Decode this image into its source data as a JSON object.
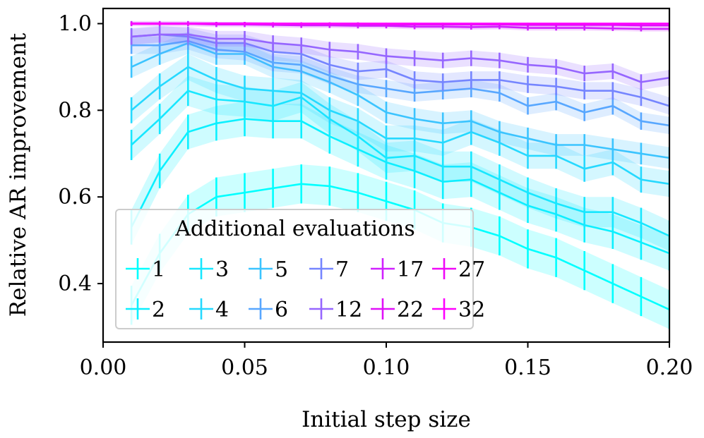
{
  "chart_data": {
    "type": "line",
    "title": "",
    "xlabel": "Initial step size",
    "ylabel": "Relative AR improvement",
    "xlim": [
      0.0,
      0.2
    ],
    "ylim": [
      0.265,
      1.035
    ],
    "xticks": [
      0.0,
      0.05,
      0.1,
      0.15,
      0.2
    ],
    "xtick_labels": [
      "0.00",
      "0.05",
      "0.10",
      "0.15",
      "0.20"
    ],
    "yticks": [
      0.4,
      0.6,
      0.8,
      1.0
    ],
    "ytick_labels": [
      "0.4",
      "0.6",
      "0.8",
      "1.0"
    ],
    "grid": false,
    "error_bars": true,
    "shaded_band": true,
    "legend": {
      "title": "Additional evaluations",
      "location": "lower-left",
      "columns": 6
    },
    "x": [
      0.01,
      0.02,
      0.03,
      0.04,
      0.05,
      0.06,
      0.07,
      0.08,
      0.09,
      0.1,
      0.11,
      0.12,
      0.13,
      0.14,
      0.15,
      0.16,
      0.17,
      0.18,
      0.19,
      0.2
    ],
    "series": [
      {
        "name": "1",
        "color": "#00ffff",
        "err": 0.045,
        "values": [
          0.35,
          0.47,
          0.56,
          0.6,
          0.61,
          0.62,
          0.63,
          0.625,
          0.61,
          0.59,
          0.57,
          0.54,
          0.53,
          0.51,
          0.48,
          0.46,
          0.43,
          0.4,
          0.37,
          0.34
        ]
      },
      {
        "name": "2",
        "color": "#0cf0ff",
        "err": 0.04,
        "values": [
          0.53,
          0.66,
          0.75,
          0.77,
          0.78,
          0.775,
          0.775,
          0.74,
          0.71,
          0.68,
          0.66,
          0.635,
          0.64,
          0.61,
          0.58,
          0.56,
          0.535,
          0.52,
          0.495,
          0.47
        ]
      },
      {
        "name": "3",
        "color": "#18e7ff",
        "err": 0.035,
        "values": [
          0.72,
          0.78,
          0.845,
          0.825,
          0.82,
          0.81,
          0.83,
          0.78,
          0.74,
          0.69,
          0.695,
          0.67,
          0.67,
          0.64,
          0.61,
          0.585,
          0.565,
          0.565,
          0.54,
          0.51
        ]
      },
      {
        "name": "4",
        "color": "#26d9ff",
        "err": 0.03,
        "values": [
          0.8,
          0.855,
          0.9,
          0.87,
          0.85,
          0.845,
          0.84,
          0.8,
          0.775,
          0.735,
          0.735,
          0.725,
          0.75,
          0.725,
          0.695,
          0.695,
          0.665,
          0.68,
          0.64,
          0.63
        ]
      },
      {
        "name": "5",
        "color": "#3bc4ff",
        "err": 0.025,
        "values": [
          0.9,
          0.93,
          0.955,
          0.93,
          0.93,
          0.9,
          0.89,
          0.865,
          0.835,
          0.795,
          0.78,
          0.77,
          0.775,
          0.75,
          0.735,
          0.72,
          0.72,
          0.71,
          0.7,
          0.69
        ]
      },
      {
        "name": "6",
        "color": "#58a7ff",
        "err": 0.02,
        "values": [
          0.95,
          0.95,
          0.96,
          0.94,
          0.935,
          0.91,
          0.905,
          0.88,
          0.86,
          0.85,
          0.84,
          0.845,
          0.85,
          0.84,
          0.81,
          0.82,
          0.795,
          0.81,
          0.775,
          0.765
        ]
      },
      {
        "name": "7",
        "color": "#7585ff",
        "err": 0.02,
        "values": [
          0.97,
          0.975,
          0.97,
          0.955,
          0.955,
          0.935,
          0.93,
          0.905,
          0.89,
          0.895,
          0.87,
          0.865,
          0.87,
          0.87,
          0.86,
          0.855,
          0.845,
          0.845,
          0.83,
          0.81
        ]
      },
      {
        "name": "12",
        "color": "#9666ff",
        "err": 0.018,
        "values": [
          0.97,
          0.975,
          0.975,
          0.965,
          0.965,
          0.955,
          0.95,
          0.94,
          0.935,
          0.925,
          0.92,
          0.915,
          0.92,
          0.915,
          0.905,
          0.9,
          0.885,
          0.89,
          0.865,
          0.875
        ]
      },
      {
        "name": "17",
        "color": "#d020ff",
        "err": 0.006,
        "values": [
          1.0,
          1.0,
          1.0,
          0.998,
          0.998,
          0.997,
          0.996,
          0.996,
          0.995,
          0.995,
          0.993,
          0.993,
          0.992,
          0.993,
          0.99,
          0.99,
          0.99,
          0.989,
          0.988,
          0.988
        ]
      },
      {
        "name": "22",
        "color": "#e010f8",
        "err": 0.004,
        "values": [
          1.0,
          1.0,
          1.0,
          1.0,
          1.0,
          0.999,
          0.999,
          0.999,
          0.999,
          0.998,
          0.998,
          0.998,
          0.998,
          0.998,
          0.997,
          0.997,
          0.997,
          0.997,
          0.996,
          0.996
        ]
      },
      {
        "name": "27",
        "color": "#f008f8",
        "err": 0.002,
        "values": [
          1.0,
          1.0,
          1.0,
          1.0,
          1.0,
          1.0,
          1.0,
          1.0,
          1.0,
          1.0,
          1.0,
          1.0,
          1.0,
          1.0,
          1.0,
          1.0,
          1.0,
          1.0,
          1.0,
          1.0
        ]
      },
      {
        "name": "32",
        "color": "#ff00ff",
        "err": 0.001,
        "values": [
          1.0,
          1.0,
          1.0,
          1.0,
          1.0,
          1.0,
          1.0,
          1.0,
          1.0,
          1.0,
          1.0,
          1.0,
          1.0,
          1.0,
          1.0,
          1.0,
          1.0,
          1.0,
          1.0,
          1.0
        ]
      }
    ]
  }
}
